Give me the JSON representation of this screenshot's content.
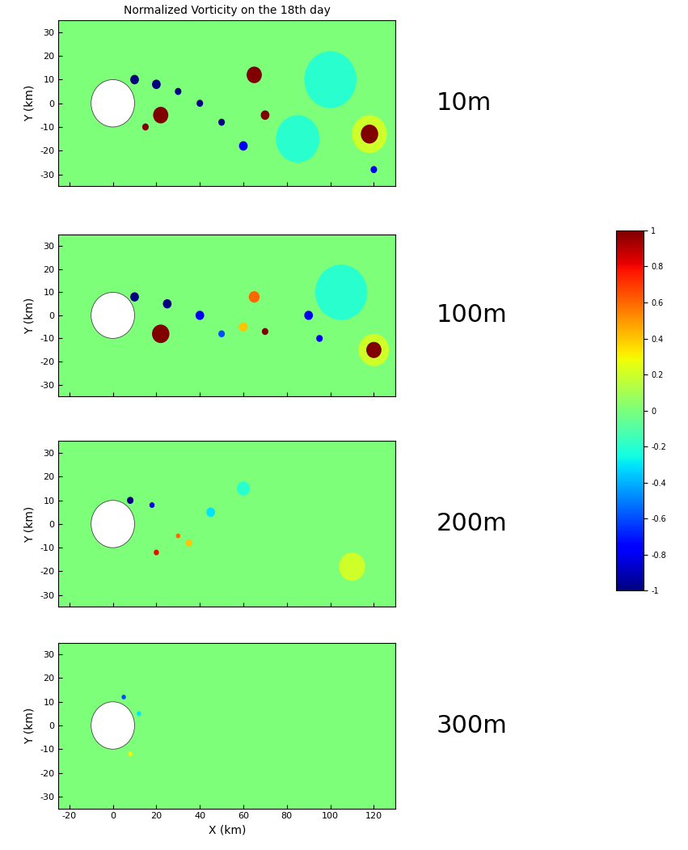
{
  "colorbar": {
    "range": [
      -1,
      1
    ],
    "ticks": [
      1,
      0.8,
      0.6,
      0.4,
      0.2,
      0,
      -0.2,
      -0.4,
      -0.6,
      -0.8,
      -1
    ],
    "background": 0
  },
  "chart_data": [
    {
      "type": "vortex_map",
      "title": "Normalized Vorticity on the 18th day",
      "label": "10m",
      "ylabel": "Y (km)",
      "tick_labels": "y",
      "xlim": [
        -25,
        130
      ],
      "ylim": [
        -35,
        35
      ],
      "xticks": [
        -20,
        0,
        20,
        40,
        60,
        80,
        100,
        120
      ],
      "yticks": [
        -30,
        -20,
        -10,
        0,
        10,
        20,
        30
      ],
      "island": {
        "x": 0,
        "y": 0,
        "radius": 10
      },
      "eddies": {
        "x": [
          100,
          85,
          118,
          65,
          70,
          118,
          22,
          15,
          10,
          20,
          30,
          40,
          50,
          60,
          120
        ],
        "y": [
          10,
          -15,
          -13,
          12,
          -5,
          -13,
          -5,
          -10,
          10,
          8,
          5,
          0,
          -8,
          -18,
          -28
        ],
        "values": [
          -0.2,
          -0.2,
          0.2,
          1,
          1,
          1,
          1,
          1,
          -1,
          -1,
          -1,
          -1,
          -1,
          -0.8,
          -0.8
        ],
        "sizes": [
          12,
          10,
          8,
          3.5,
          2,
          4,
          3.5,
          1.5,
          2,
          2,
          1.5,
          1.5,
          1.5,
          2,
          1.5
        ]
      }
    },
    {
      "type": "vortex_map",
      "label": "100m",
      "ylabel": "Y (km)",
      "tick_labels": "y",
      "xlim": [
        -25,
        130
      ],
      "ylim": [
        -35,
        35
      ],
      "xticks": [
        -20,
        0,
        20,
        40,
        60,
        80,
        100,
        120
      ],
      "yticks": [
        -30,
        -20,
        -10,
        0,
        10,
        20,
        30
      ],
      "island": {
        "x": 0,
        "y": 0,
        "radius": 10
      },
      "eddies": {
        "x": [
          105,
          120,
          22,
          10,
          25,
          40,
          50,
          65,
          70,
          60,
          90,
          95,
          120
        ],
        "y": [
          10,
          -15,
          -8,
          8,
          5,
          0,
          -8,
          8,
          -7,
          -5,
          0,
          -10,
          -15
        ],
        "values": [
          -0.2,
          0.2,
          1,
          -1,
          -1,
          -0.8,
          -0.6,
          0.6,
          1,
          0.4,
          -0.8,
          -0.8,
          1
        ],
        "sizes": [
          12,
          7,
          4,
          2,
          2,
          2,
          1.5,
          2.5,
          1.5,
          2,
          2,
          1.5,
          3.5
        ]
      }
    },
    {
      "type": "vortex_map",
      "label": "200m",
      "ylabel": "Y (km)",
      "tick_labels": "y",
      "xlim": [
        -25,
        130
      ],
      "ylim": [
        -35,
        35
      ],
      "xticks": [
        -20,
        0,
        20,
        40,
        60,
        80,
        100,
        120
      ],
      "yticks": [
        -30,
        -20,
        -10,
        0,
        10,
        20,
        30
      ],
      "island": {
        "x": 0,
        "y": 0,
        "radius": 10
      },
      "eddies": {
        "x": [
          110,
          60,
          45,
          8,
          18,
          20,
          30,
          35
        ],
        "y": [
          -18,
          15,
          5,
          10,
          8,
          -12,
          -5,
          -8
        ],
        "values": [
          0.2,
          -0.2,
          -0.3,
          -1,
          -0.8,
          0.8,
          0.6,
          0.4
        ],
        "sizes": [
          6,
          3,
          2,
          1.5,
          1.2,
          1.2,
          1,
          1.5
        ]
      }
    },
    {
      "type": "vortex_map",
      "label": "300m",
      "ylabel": "Y (km)",
      "xlabel": "X (km)",
      "xlim": [
        -25,
        130
      ],
      "ylim": [
        -35,
        35
      ],
      "xticks": [
        -20,
        0,
        20,
        40,
        60,
        80,
        100,
        120
      ],
      "yticks": [
        -30,
        -20,
        -10,
        0,
        10,
        20,
        30
      ],
      "island": {
        "x": 0,
        "y": 0,
        "radius": 10
      },
      "eddies": {
        "x": [
          5,
          12,
          8
        ],
        "y": [
          12,
          5,
          -12
        ],
        "values": [
          -0.6,
          -0.3,
          0.3
        ],
        "sizes": [
          1,
          1,
          1
        ]
      }
    }
  ]
}
